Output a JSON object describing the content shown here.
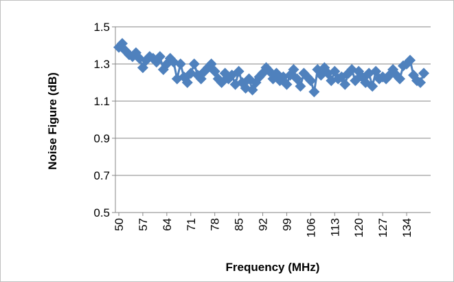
{
  "chart_data": {
    "type": "line",
    "title": "",
    "xlabel": "Frequency (MHz)",
    "ylabel": "Noise Figure (dB)",
    "ylim": [
      0.5,
      1.5
    ],
    "yticks": [
      "0.5",
      "0.7",
      "0.9",
      "1.1",
      "1.3",
      "1.5"
    ],
    "xticks": [
      "50",
      "57",
      "64",
      "71",
      "78",
      "85",
      "92",
      "99",
      "106",
      "113",
      "120",
      "127",
      "134"
    ],
    "xlim": [
      50,
      140
    ],
    "grid": "horizontal",
    "legend": "none",
    "series": [
      {
        "color": "#4f81bd",
        "marker": "diamond",
        "x": [
          50,
          51,
          52,
          53,
          54,
          55,
          56,
          57,
          58,
          59,
          60,
          61,
          62,
          63,
          64,
          65,
          66,
          67,
          68,
          69,
          70,
          71,
          72,
          73,
          74,
          75,
          76,
          77,
          78,
          79,
          80,
          81,
          82,
          83,
          84,
          85,
          86,
          87,
          88,
          89,
          90,
          91,
          92,
          93,
          94,
          95,
          96,
          97,
          98,
          99,
          100,
          101,
          102,
          103,
          104,
          105,
          106,
          107,
          108,
          109,
          110,
          111,
          112,
          113,
          114,
          115,
          116,
          117,
          118,
          119,
          120,
          121,
          122,
          123,
          124,
          125,
          126,
          127,
          128,
          129,
          130,
          131,
          132,
          133,
          134,
          135,
          136,
          137,
          138,
          139
        ],
        "y": [
          1.39,
          1.41,
          1.37,
          1.35,
          1.34,
          1.36,
          1.33,
          1.28,
          1.32,
          1.34,
          1.33,
          1.31,
          1.34,
          1.27,
          1.3,
          1.33,
          1.31,
          1.22,
          1.3,
          1.23,
          1.2,
          1.25,
          1.3,
          1.24,
          1.22,
          1.26,
          1.28,
          1.3,
          1.26,
          1.22,
          1.2,
          1.25,
          1.22,
          1.24,
          1.19,
          1.26,
          1.2,
          1.17,
          1.22,
          1.16,
          1.2,
          1.23,
          1.25,
          1.28,
          1.26,
          1.22,
          1.25,
          1.21,
          1.23,
          1.19,
          1.24,
          1.27,
          1.22,
          1.18,
          1.25,
          1.23,
          1.21,
          1.15,
          1.27,
          1.24,
          1.28,
          1.25,
          1.21,
          1.26,
          1.22,
          1.23,
          1.19,
          1.25,
          1.27,
          1.21,
          1.26,
          1.23,
          1.2,
          1.25,
          1.18,
          1.26,
          1.22,
          1.23,
          1.22,
          1.24,
          1.27,
          1.24,
          1.22,
          1.29,
          1.3,
          1.32,
          1.24,
          1.21,
          1.2,
          1.25
        ]
      }
    ]
  }
}
